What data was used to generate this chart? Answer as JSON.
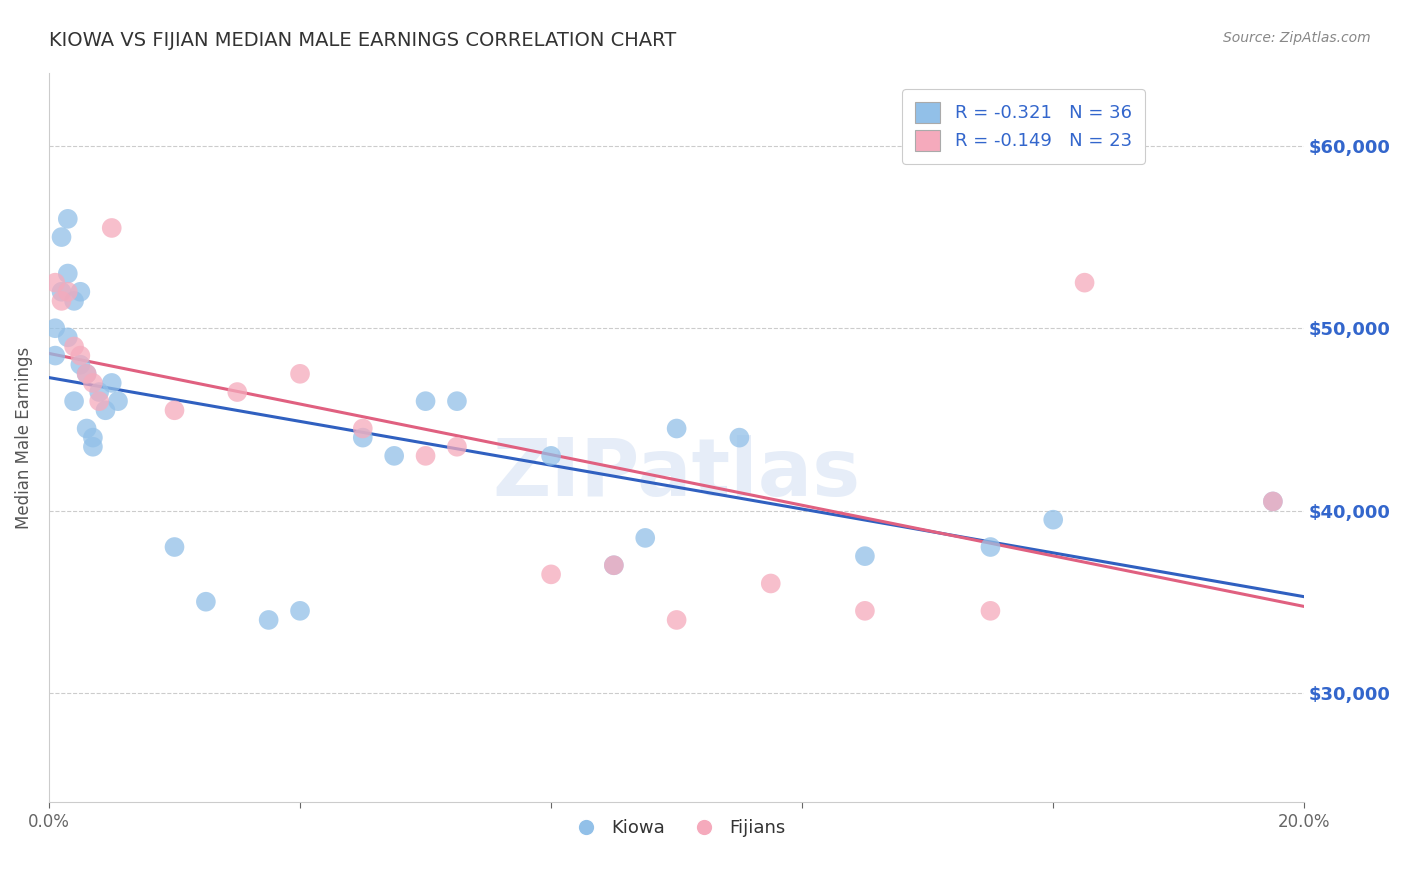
{
  "title": "KIOWA VS FIJIAN MEDIAN MALE EARNINGS CORRELATION CHART",
  "source": "Source: ZipAtlas.com",
  "ylabel_label": "Median Male Earnings",
  "x_min": 0.0,
  "x_max": 0.2,
  "y_min": 24000,
  "y_max": 64000,
  "y_ticks": [
    30000,
    40000,
    50000,
    60000
  ],
  "y_tick_labels": [
    "$30,000",
    "$40,000",
    "$50,000",
    "$60,000"
  ],
  "kiowa_color": "#92c0e8",
  "fijian_color": "#f5aabc",
  "kiowa_line_color": "#3060c0",
  "fijian_line_color": "#e06080",
  "kiowa_R": -0.321,
  "kiowa_N": 36,
  "fijian_R": -0.149,
  "fijian_N": 23,
  "watermark": "ZIPatlas",
  "kiowa_x": [
    0.001,
    0.001,
    0.002,
    0.002,
    0.003,
    0.003,
    0.003,
    0.004,
    0.004,
    0.005,
    0.005,
    0.006,
    0.006,
    0.007,
    0.007,
    0.008,
    0.009,
    0.01,
    0.011,
    0.02,
    0.025,
    0.035,
    0.04,
    0.05,
    0.055,
    0.06,
    0.065,
    0.08,
    0.09,
    0.095,
    0.1,
    0.11,
    0.13,
    0.15,
    0.16,
    0.195
  ],
  "kiowa_y": [
    50000,
    48500,
    55000,
    52000,
    49500,
    56000,
    53000,
    51500,
    46000,
    52000,
    48000,
    47500,
    44500,
    44000,
    43500,
    46500,
    45500,
    47000,
    46000,
    38000,
    35000,
    34000,
    34500,
    44000,
    43000,
    46000,
    46000,
    43000,
    37000,
    38500,
    44500,
    44000,
    37500,
    38000,
    39500,
    40500
  ],
  "fijian_x": [
    0.001,
    0.002,
    0.003,
    0.004,
    0.005,
    0.006,
    0.007,
    0.008,
    0.01,
    0.02,
    0.03,
    0.04,
    0.05,
    0.06,
    0.065,
    0.08,
    0.09,
    0.1,
    0.115,
    0.13,
    0.15,
    0.165,
    0.195
  ],
  "fijian_y": [
    52500,
    51500,
    52000,
    49000,
    48500,
    47500,
    47000,
    46000,
    55500,
    45500,
    46500,
    47500,
    44500,
    43000,
    43500,
    36500,
    37000,
    34000,
    36000,
    34500,
    34500,
    52500,
    40500
  ]
}
